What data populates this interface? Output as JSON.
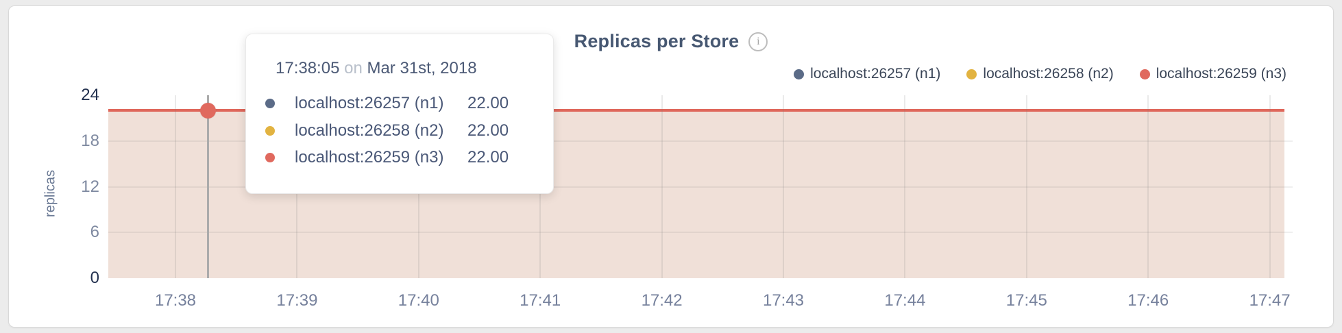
{
  "header": {
    "title": "Replicas per Store",
    "info_icon": "i"
  },
  "chart_data": {
    "type": "area",
    "title": "Replicas per Store",
    "ylabel": "replicas",
    "xlabel": "",
    "x_tick_labels": [
      "17:38",
      "17:39",
      "17:40",
      "17:41",
      "17:42",
      "17:43",
      "17:44",
      "17:45",
      "17:46",
      "17:47"
    ],
    "y_ticks": [
      0,
      6,
      12,
      18,
      24
    ],
    "ylim": [
      0,
      24
    ],
    "grid": true,
    "grid_y_values": [
      6,
      12,
      18
    ],
    "legend_position": "top-right",
    "area_fill_color": "#f0e0d8",
    "line_color": "#df675b",
    "series": [
      {
        "name": "localhost:26257 (n1)",
        "color": "#5b6b87",
        "values": [
          22,
          22,
          22,
          22,
          22,
          22,
          22,
          22,
          22,
          22
        ]
      },
      {
        "name": "localhost:26258 (n2)",
        "color": "#e2b341",
        "values": [
          22,
          22,
          22,
          22,
          22,
          22,
          22,
          22,
          22,
          22
        ]
      },
      {
        "name": "localhost:26259 (n3)",
        "color": "#e0695e",
        "values": [
          22,
          22,
          22,
          22,
          22,
          22,
          22,
          22,
          22,
          22
        ]
      }
    ]
  },
  "tooltip": {
    "time": "17:38:05",
    "connector": "on",
    "date": "Mar 31st, 2018",
    "rows": [
      {
        "name": "localhost:26257 (n1)",
        "color": "#5b6b87",
        "value": "22.00"
      },
      {
        "name": "localhost:26258 (n2)",
        "color": "#e2b341",
        "value": "22.00"
      },
      {
        "name": "localhost:26259 (n3)",
        "color": "#e0695e",
        "value": "22.00"
      }
    ]
  },
  "hover": {
    "hovered_value": 22
  }
}
